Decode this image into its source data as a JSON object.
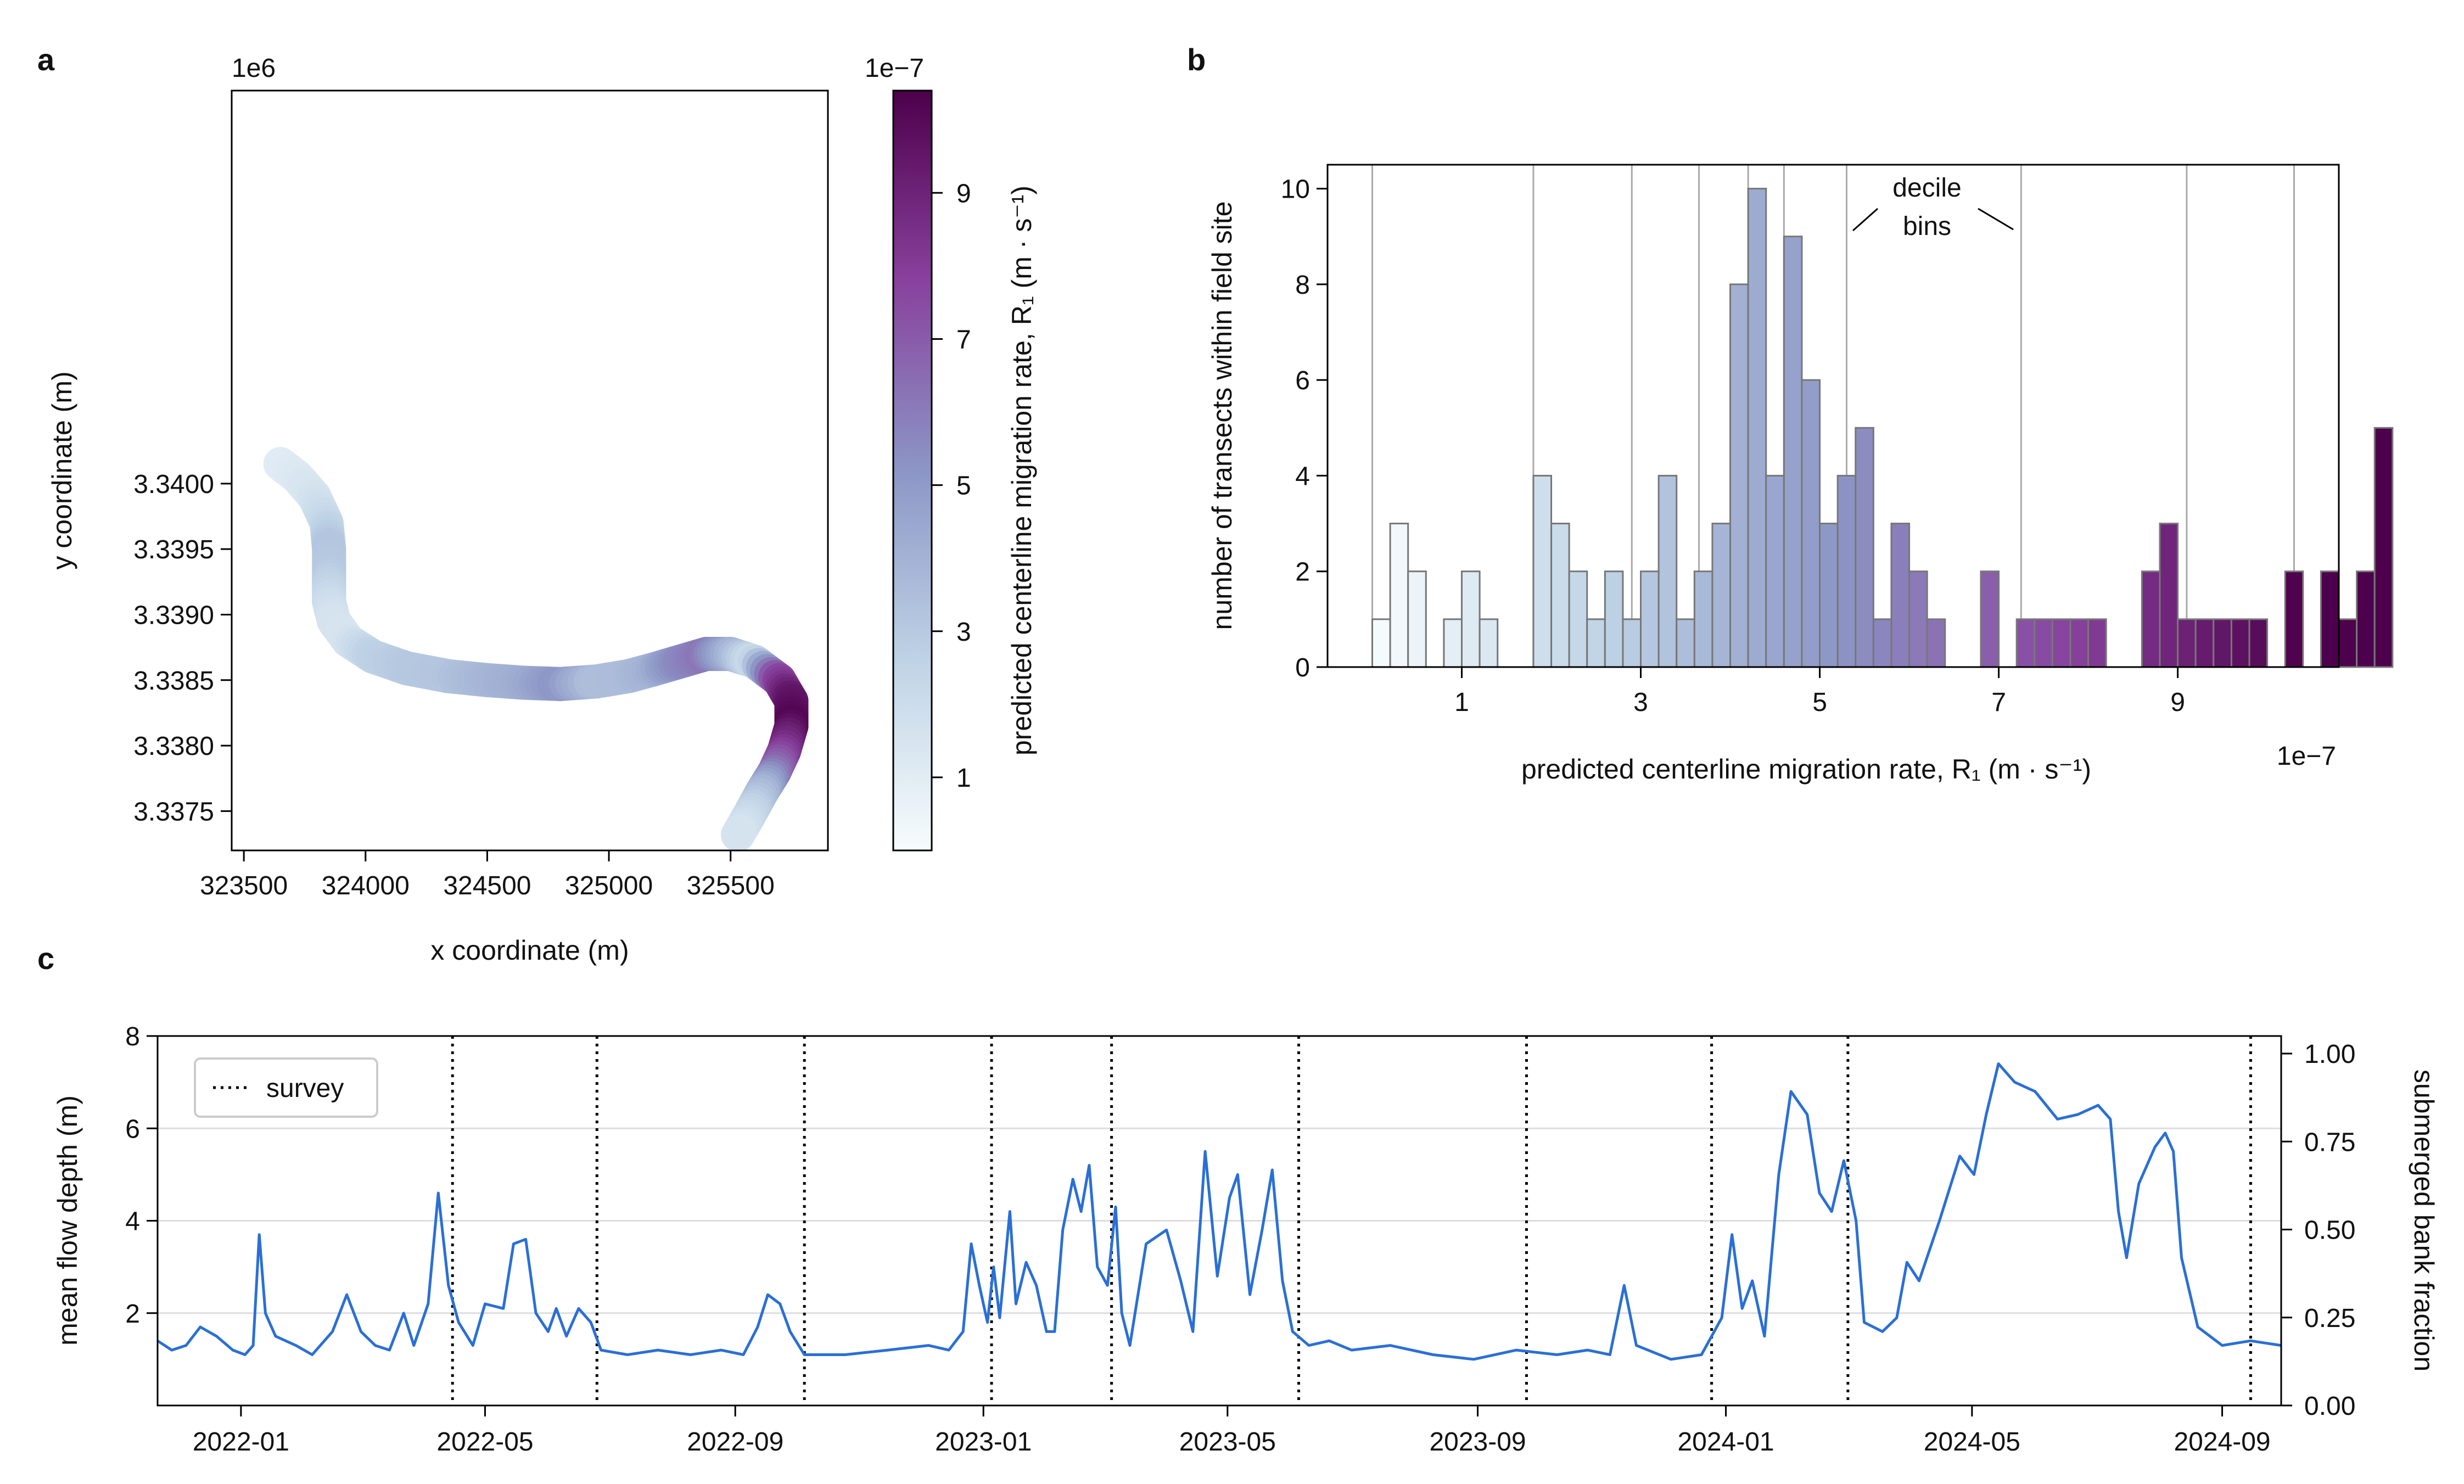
{
  "panels": {
    "a": "a",
    "b": "b",
    "c": "c"
  },
  "chart_data": [
    {
      "id": "a",
      "type": "line",
      "xlabel": "x coordinate (m)",
      "ylabel": "y coordinate (m)",
      "x_ticks": [
        "323500",
        "324000",
        "324500",
        "325000",
        "325500"
      ],
      "y_ticks": [
        "3.3375",
        "3.3380",
        "3.3385",
        "3.3390",
        "3.3395",
        "3.3400"
      ],
      "y_offset_label": "1e6",
      "xlim": [
        323450,
        325900
      ],
      "ylim": [
        3337200,
        3343000
      ],
      "centerline": [
        [
          323650,
          3340150,
          1.0
        ],
        [
          323720,
          3340050,
          1.2
        ],
        [
          323790,
          3339900,
          1.5
        ],
        [
          323840,
          3339700,
          2.2
        ],
        [
          323850,
          3339500,
          3.2
        ],
        [
          323850,
          3339300,
          3.0
        ],
        [
          323850,
          3339100,
          2.2
        ],
        [
          323870,
          3338950,
          1.6
        ],
        [
          323930,
          3338800,
          1.5
        ],
        [
          324030,
          3338680,
          2.6
        ],
        [
          324170,
          3338590,
          3.0
        ],
        [
          324340,
          3338530,
          3.2
        ],
        [
          324500,
          3338500,
          3.8
        ],
        [
          324650,
          3338480,
          4.2
        ],
        [
          324800,
          3338470,
          5.2
        ],
        [
          324950,
          3338490,
          3.5
        ],
        [
          325080,
          3338530,
          3.6
        ],
        [
          325180,
          3338580,
          4.0
        ],
        [
          325290,
          3338640,
          5.5
        ],
        [
          325400,
          3338700,
          6.2
        ],
        [
          325500,
          3338700,
          4.2
        ],
        [
          325600,
          3338640,
          2.0
        ],
        [
          325700,
          3338500,
          7.5
        ],
        [
          325750,
          3338340,
          9.5
        ],
        [
          325750,
          3338150,
          10.2
        ],
        [
          325720,
          3337960,
          8.5
        ],
        [
          325680,
          3337800,
          6.5
        ],
        [
          325630,
          3337650,
          4.0
        ],
        [
          325580,
          3337480,
          2.5
        ],
        [
          325530,
          3337320,
          1.5
        ]
      ],
      "colorbar": {
        "label": "predicted centerline migration rate, R₁ (m · s⁻¹)",
        "offset_label": "1e−7",
        "ticks": [
          "1",
          "3",
          "5",
          "7",
          "9"
        ],
        "range": [
          0,
          10.4
        ],
        "colormap": [
          "#f7fcfd",
          "#bfd3e6",
          "#8c96c6",
          "#88419d",
          "#4d004b"
        ]
      }
    },
    {
      "id": "b",
      "type": "bar",
      "xlabel": "predicted centerline migration rate, R₁ (m · s⁻¹)",
      "ylabel": "number of transects within field site",
      "x_offset_label": "1e−7",
      "x_ticks": [
        "1",
        "3",
        "5",
        "7",
        "9"
      ],
      "y_ticks": [
        "0",
        "2",
        "4",
        "6",
        "8",
        "10"
      ],
      "xlim": [
        -0.5,
        10.8
      ],
      "ylim": [
        0,
        10.5
      ],
      "bin_width": 0.2,
      "bin_start": 0.0,
      "counts": [
        1,
        3,
        2,
        0,
        1,
        2,
        1,
        0,
        0,
        4,
        3,
        2,
        1,
        2,
        1,
        2,
        4,
        1,
        2,
        3,
        8,
        10,
        4,
        9,
        6,
        3,
        4,
        5,
        1,
        3,
        2,
        1,
        0,
        0,
        2,
        0,
        1,
        1,
        1,
        1,
        1,
        0,
        0,
        2,
        3,
        1,
        1,
        1,
        1,
        1,
        0,
        2,
        0,
        2,
        1,
        2,
        5
      ],
      "decile_lines": [
        0.0,
        1.8,
        2.9,
        3.65,
        4.2,
        4.6,
        5.3,
        7.25,
        9.1,
        10.3
      ],
      "annotation": "decile\nbins"
    },
    {
      "id": "c",
      "type": "line",
      "ylabel": "mean flow depth (m)",
      "y2label": "submerged bank fraction",
      "x_ticks": [
        "2022-01",
        "2022-05",
        "2022-09",
        "2023-01",
        "2023-05",
        "2023-09",
        "2024-01",
        "2024-05",
        "2024-09"
      ],
      "y_ticks": [
        "2",
        "4",
        "6",
        "8"
      ],
      "y2_ticks": [
        "0.00",
        "0.25",
        "0.50",
        "0.75",
        "1.00"
      ],
      "xlim": [
        "2021-11-21",
        "2024-09-30"
      ],
      "ylim": [
        0,
        8
      ],
      "y2lim": [
        0,
        1.05
      ],
      "legend": {
        "label": "survey"
      },
      "survey_dates": [
        "2022-04-15",
        "2022-06-25",
        "2022-10-05",
        "2023-01-05",
        "2023-03-05",
        "2023-06-05",
        "2023-09-25",
        "2023-12-25",
        "2024-03-01",
        "2024-09-15"
      ],
      "series": [
        {
          "color": "#2a6fd6",
          "points": [
            [
              "2021-11-21",
              1.4
            ],
            [
              "2021-11-28",
              1.2
            ],
            [
              "2021-12-05",
              1.3
            ],
            [
              "2021-12-12",
              1.7
            ],
            [
              "2021-12-20",
              1.5
            ],
            [
              "2021-12-28",
              1.2
            ],
            [
              "2022-01-03",
              1.1
            ],
            [
              "2022-01-07",
              1.3
            ],
            [
              "2022-01-10",
              3.7
            ],
            [
              "2022-01-13",
              2.0
            ],
            [
              "2022-01-18",
              1.5
            ],
            [
              "2022-01-28",
              1.3
            ],
            [
              "2022-02-05",
              1.1
            ],
            [
              "2022-02-15",
              1.6
            ],
            [
              "2022-02-22",
              2.4
            ],
            [
              "2022-03-01",
              1.6
            ],
            [
              "2022-03-08",
              1.3
            ],
            [
              "2022-03-15",
              1.2
            ],
            [
              "2022-03-22",
              2.0
            ],
            [
              "2022-03-27",
              1.3
            ],
            [
              "2022-04-03",
              2.2
            ],
            [
              "2022-04-08",
              4.6
            ],
            [
              "2022-04-13",
              2.6
            ],
            [
              "2022-04-18",
              1.8
            ],
            [
              "2022-04-25",
              1.3
            ],
            [
              "2022-05-01",
              2.2
            ],
            [
              "2022-05-10",
              2.1
            ],
            [
              "2022-05-15",
              3.5
            ],
            [
              "2022-05-21",
              3.6
            ],
            [
              "2022-05-26",
              2.0
            ],
            [
              "2022-06-01",
              1.6
            ],
            [
              "2022-06-05",
              2.1
            ],
            [
              "2022-06-10",
              1.5
            ],
            [
              "2022-06-16",
              2.1
            ],
            [
              "2022-06-22",
              1.8
            ],
            [
              "2022-06-27",
              1.2
            ],
            [
              "2022-07-10",
              1.1
            ],
            [
              "2022-07-25",
              1.2
            ],
            [
              "2022-08-10",
              1.1
            ],
            [
              "2022-08-25",
              1.2
            ],
            [
              "2022-09-05",
              1.1
            ],
            [
              "2022-09-12",
              1.7
            ],
            [
              "2022-09-17",
              2.4
            ],
            [
              "2022-09-23",
              2.2
            ],
            [
              "2022-09-28",
              1.6
            ],
            [
              "2022-10-05",
              1.1
            ],
            [
              "2022-10-25",
              1.1
            ],
            [
              "2022-11-15",
              1.2
            ],
            [
              "2022-12-05",
              1.3
            ],
            [
              "2022-12-15",
              1.2
            ],
            [
              "2022-12-22",
              1.6
            ],
            [
              "2022-12-26",
              3.5
            ],
            [
              "2022-12-30",
              2.6
            ],
            [
              "2023-01-03",
              1.8
            ],
            [
              "2023-01-06",
              3.0
            ],
            [
              "2023-01-09",
              1.9
            ],
            [
              "2023-01-14",
              4.2
            ],
            [
              "2023-01-17",
              2.2
            ],
            [
              "2023-01-22",
              3.1
            ],
            [
              "2023-01-27",
              2.6
            ],
            [
              "2023-02-01",
              1.6
            ],
            [
              "2023-02-05",
              1.6
            ],
            [
              "2023-02-09",
              3.8
            ],
            [
              "2023-02-14",
              4.9
            ],
            [
              "2023-02-18",
              4.2
            ],
            [
              "2023-02-22",
              5.2
            ],
            [
              "2023-02-26",
              3.0
            ],
            [
              "2023-03-03",
              2.6
            ],
            [
              "2023-03-07",
              4.3
            ],
            [
              "2023-03-10",
              2.0
            ],
            [
              "2023-03-14",
              1.3
            ],
            [
              "2023-03-22",
              3.5
            ],
            [
              "2023-04-01",
              3.8
            ],
            [
              "2023-04-08",
              2.7
            ],
            [
              "2023-04-14",
              1.6
            ],
            [
              "2023-04-20",
              5.5
            ],
            [
              "2023-04-26",
              2.8
            ],
            [
              "2023-05-02",
              4.5
            ],
            [
              "2023-05-06",
              5.0
            ],
            [
              "2023-05-12",
              2.4
            ],
            [
              "2023-05-18",
              3.8
            ],
            [
              "2023-05-23",
              5.1
            ],
            [
              "2023-05-28",
              2.7
            ],
            [
              "2023-06-02",
              1.6
            ],
            [
              "2023-06-10",
              1.3
            ],
            [
              "2023-06-20",
              1.4
            ],
            [
              "2023-07-01",
              1.2
            ],
            [
              "2023-07-20",
              1.3
            ],
            [
              "2023-08-10",
              1.1
            ],
            [
              "2023-08-30",
              1.0
            ],
            [
              "2023-09-20",
              1.2
            ],
            [
              "2023-10-10",
              1.1
            ],
            [
              "2023-10-25",
              1.2
            ],
            [
              "2023-11-05",
              1.1
            ],
            [
              "2023-11-12",
              2.6
            ],
            [
              "2023-11-18",
              1.3
            ],
            [
              "2023-12-05",
              1.0
            ],
            [
              "2023-12-20",
              1.1
            ],
            [
              "2023-12-30",
              1.9
            ],
            [
              "2024-01-04",
              3.7
            ],
            [
              "2024-01-09",
              2.1
            ],
            [
              "2024-01-14",
              2.7
            ],
            [
              "2024-01-20",
              1.5
            ],
            [
              "2024-01-27",
              5.0
            ],
            [
              "2024-02-02",
              6.8
            ],
            [
              "2024-02-10",
              6.3
            ],
            [
              "2024-02-16",
              4.6
            ],
            [
              "2024-02-22",
              4.2
            ],
            [
              "2024-02-28",
              5.3
            ],
            [
              "2024-03-05",
              4.0
            ],
            [
              "2024-03-09",
              1.8
            ],
            [
              "2024-03-18",
              1.6
            ],
            [
              "2024-03-25",
              1.9
            ],
            [
              "2024-03-30",
              3.1
            ],
            [
              "2024-04-05",
              2.7
            ],
            [
              "2024-04-15",
              4.0
            ],
            [
              "2024-04-25",
              5.4
            ],
            [
              "2024-05-02",
              5.0
            ],
            [
              "2024-05-08",
              6.3
            ],
            [
              "2024-05-14",
              7.4
            ],
            [
              "2024-05-22",
              7.0
            ],
            [
              "2024-06-01",
              6.8
            ],
            [
              "2024-06-12",
              6.2
            ],
            [
              "2024-06-22",
              6.3
            ],
            [
              "2024-07-02",
              6.5
            ],
            [
              "2024-07-08",
              6.2
            ],
            [
              "2024-07-12",
              4.2
            ],
            [
              "2024-07-16",
              3.2
            ],
            [
              "2024-07-22",
              4.8
            ],
            [
              "2024-07-30",
              5.6
            ],
            [
              "2024-08-04",
              5.9
            ],
            [
              "2024-08-08",
              5.5
            ],
            [
              "2024-08-12",
              3.2
            ],
            [
              "2024-08-20",
              1.7
            ],
            [
              "2024-09-01",
              1.3
            ],
            [
              "2024-09-15",
              1.4
            ],
            [
              "2024-09-30",
              1.3
            ]
          ]
        }
      ]
    }
  ]
}
